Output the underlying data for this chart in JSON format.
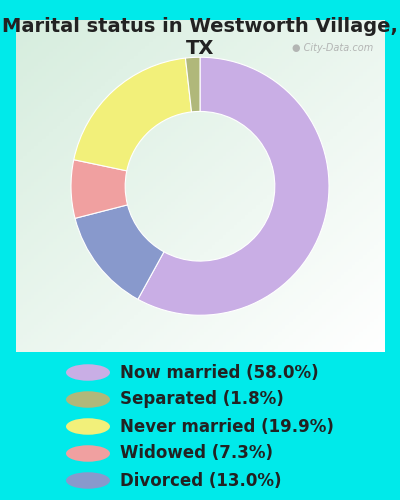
{
  "title": "Marital status in Westworth Village, TX",
  "slices": [
    58.0,
    13.0,
    7.3,
    19.9,
    1.8
  ],
  "labels": [
    "Now married (58.0%)",
    "Separated (1.8%)",
    "Never married (19.9%)",
    "Widowed (7.3%)",
    "Divorced (13.0%)"
  ],
  "legend_colors": [
    "#c9aee5",
    "#b0b87a",
    "#f2f07a",
    "#f0a0a0",
    "#8899cc"
  ],
  "slice_colors": [
    "#c9aee5",
    "#8899cc",
    "#f0a0a0",
    "#f2f07a",
    "#b0b87a"
  ],
  "bg_outer": "#00eaea",
  "bg_chart_tl": "#d8ede0",
  "bg_chart_br": "#f5faf5",
  "title_fontsize": 14,
  "legend_fontsize": 12,
  "startangle": 90,
  "donut_width": 0.42,
  "watermark": "City-Data.com"
}
